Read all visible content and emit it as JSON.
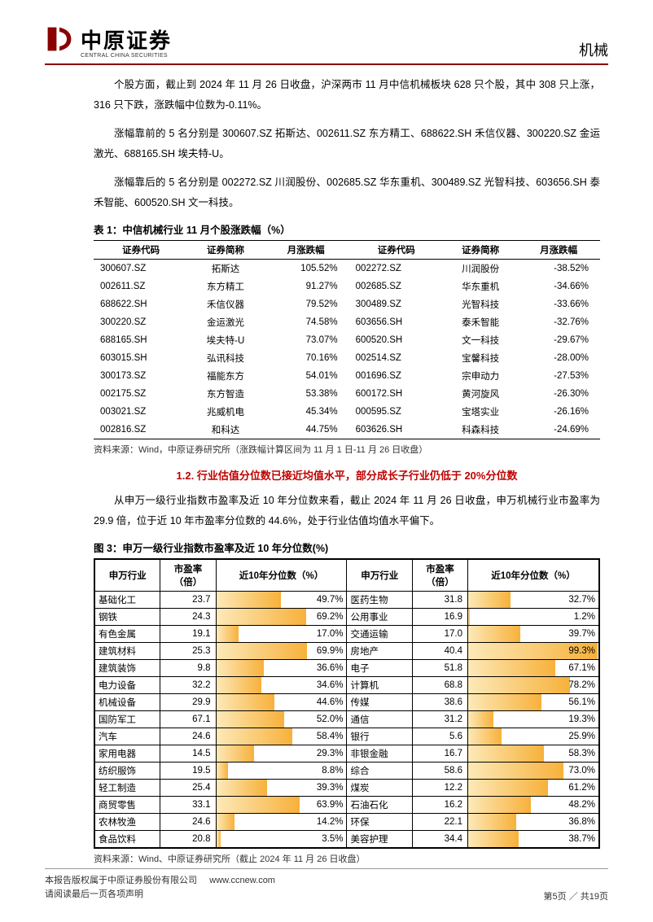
{
  "header": {
    "logo_cn": "中原证券",
    "logo_en": "CENTRAL CHINA SECURITIES",
    "logo_color": "#8b0000",
    "category": "机械"
  },
  "body": {
    "p1": "个股方面，截止到 2024 年 11 月 26 日收盘，沪深两市 11 月中信机械板块 628 只个股，其中 308 只上涨，316 只下跌，涨跌幅中位数为-0.11%。",
    "p2": "涨幅靠前的 5 名分别是 300607.SZ 拓斯达、002611.SZ 东方精工、688622.SH 禾信仪器、300220.SZ 金运激光、688165.SH 埃夫特-U。",
    "p3": "涨幅靠后的 5 名分别是 002272.SZ 川润股份、002685.SZ 华东重机、300489.SZ 光智科技、603656.SH 泰禾智能、600520.SH 文一科技。",
    "table1_caption": "表 1：中信机械行业 11 月个股涨跌幅（%）",
    "table1_source": "资料来源：Wind，中原证券研究所（涨跌幅计算区间为 11 月 1 日-11 月 26 日收盘）",
    "subheading": "1.2. 行业估值分位数已接近均值水平，部分成长子行业仍低于 20%分位数",
    "p4": "从申万一级行业指数市盈率及近 10 年分位数来看，截止 2024 年 11 月 26 日收盘，申万机械行业市盈率为 29.9 倍，位于近 10 年市盈率分位数的 44.6%，处于行业估值均值水平偏下。",
    "fig3_caption": "图 3：申万一级行业指数市盈率及近 10 年分位数(%)",
    "fig3_source": "资料来源：Wind、中原证券研究所（截止 2024 年 11 月 26 日收盘）"
  },
  "table1": {
    "headers": [
      "证券代码",
      "证券简称",
      "月涨跌幅",
      "证券代码",
      "证券简称",
      "月涨跌幅"
    ],
    "rows": [
      [
        "300607.SZ",
        "拓斯达",
        "105.52%",
        "002272.SZ",
        "川润股份",
        "-38.52%"
      ],
      [
        "002611.SZ",
        "东方精工",
        "91.27%",
        "002685.SZ",
        "华东重机",
        "-34.66%"
      ],
      [
        "688622.SH",
        "禾信仪器",
        "79.52%",
        "300489.SZ",
        "光智科技",
        "-33.66%"
      ],
      [
        "300220.SZ",
        "金运激光",
        "74.58%",
        "603656.SH",
        "泰禾智能",
        "-32.76%"
      ],
      [
        "688165.SH",
        "埃夫特-U",
        "73.07%",
        "600520.SH",
        "文一科技",
        "-29.67%"
      ],
      [
        "603015.SH",
        "弘讯科技",
        "70.16%",
        "002514.SZ",
        "宝馨科技",
        "-28.00%"
      ],
      [
        "300173.SZ",
        "福能东方",
        "54.01%",
        "001696.SZ",
        "宗申动力",
        "-27.53%"
      ],
      [
        "002175.SZ",
        "东方智造",
        "53.38%",
        "600172.SH",
        "黄河旋风",
        "-26.30%"
      ],
      [
        "003021.SZ",
        "兆威机电",
        "45.34%",
        "000595.SZ",
        "宝塔实业",
        "-26.16%"
      ],
      [
        "002816.SZ",
        "和科达",
        "44.75%",
        "603626.SH",
        "科森科技",
        "-24.69%"
      ]
    ]
  },
  "table2": {
    "headers": [
      "申万行业",
      "市盈率（倍）",
      "近10年分位数（%）",
      "申万行业",
      "市盈率（倍）",
      "近10年分位数（%）"
    ],
    "bar_gradient_from": "#fde9b8",
    "bar_gradient_to": "#f7b13b",
    "rows": [
      {
        "l_name": "基础化工",
        "l_pe": "23.7",
        "l_pct": 49.7,
        "r_name": "医药生物",
        "r_pe": "31.8",
        "r_pct": 32.7
      },
      {
        "l_name": "钢铁",
        "l_pe": "24.3",
        "l_pct": 69.2,
        "r_name": "公用事业",
        "r_pe": "16.9",
        "r_pct": 1.2
      },
      {
        "l_name": "有色金属",
        "l_pe": "19.1",
        "l_pct": 17.0,
        "r_name": "交通运输",
        "r_pe": "17.0",
        "r_pct": 39.7
      },
      {
        "l_name": "建筑材料",
        "l_pe": "25.3",
        "l_pct": 69.9,
        "r_name": "房地产",
        "r_pe": "40.4",
        "r_pct": 99.3
      },
      {
        "l_name": "建筑装饰",
        "l_pe": "9.8",
        "l_pct": 36.6,
        "r_name": "电子",
        "r_pe": "51.8",
        "r_pct": 67.1
      },
      {
        "l_name": "电力设备",
        "l_pe": "32.2",
        "l_pct": 34.6,
        "r_name": "计算机",
        "r_pe": "68.8",
        "r_pct": 78.2
      },
      {
        "l_name": "机械设备",
        "l_pe": "29.9",
        "l_pct": 44.6,
        "r_name": "传媒",
        "r_pe": "38.6",
        "r_pct": 56.1
      },
      {
        "l_name": "国防军工",
        "l_pe": "67.1",
        "l_pct": 52.0,
        "r_name": "通信",
        "r_pe": "31.2",
        "r_pct": 19.3
      },
      {
        "l_name": "汽车",
        "l_pe": "24.6",
        "l_pct": 58.4,
        "r_name": "银行",
        "r_pe": "5.6",
        "r_pct": 25.9
      },
      {
        "l_name": "家用电器",
        "l_pe": "14.5",
        "l_pct": 29.3,
        "r_name": "非银金融",
        "r_pe": "16.7",
        "r_pct": 58.3
      },
      {
        "l_name": "纺织服饰",
        "l_pe": "19.5",
        "l_pct": 8.8,
        "r_name": "综合",
        "r_pe": "58.6",
        "r_pct": 73.0
      },
      {
        "l_name": "轻工制造",
        "l_pe": "25.4",
        "l_pct": 39.3,
        "r_name": "煤炭",
        "r_pe": "12.2",
        "r_pct": 61.2
      },
      {
        "l_name": "商贸零售",
        "l_pe": "33.1",
        "l_pct": 63.9,
        "r_name": "石油石化",
        "r_pe": "16.2",
        "r_pct": 48.2
      },
      {
        "l_name": "农林牧渔",
        "l_pe": "24.6",
        "l_pct": 14.2,
        "r_name": "环保",
        "r_pe": "22.1",
        "r_pct": 36.8
      },
      {
        "l_name": "食品饮料",
        "l_pe": "20.8",
        "l_pct": 3.5,
        "r_name": "美容护理",
        "r_pe": "34.4",
        "r_pct": 38.7
      }
    ]
  },
  "footer": {
    "line1": "本报告版权属于中原证券股份有限公司",
    "url": "www.ccnew.com",
    "line2": "请阅读最后一页各项声明",
    "page": "第5页 ／ 共19页"
  }
}
